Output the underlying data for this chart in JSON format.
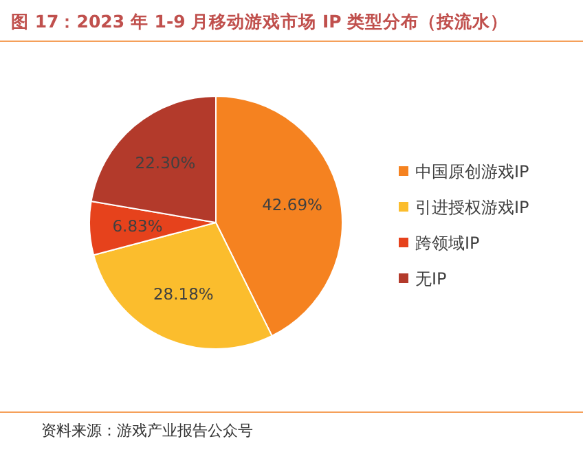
{
  "chart_data": {
    "type": "pie",
    "title": "图 17：2023 年 1-9 月移动游戏市场 IP 类型分布（按流水）",
    "categories": [
      "中国原创游戏IP",
      "引进授权游戏IP",
      "跨领域IP",
      "无IP"
    ],
    "values": [
      42.69,
      28.18,
      6.83,
      22.3
    ],
    "colors": [
      "#f58220",
      "#fbbd2d",
      "#e6421c",
      "#b33a2b"
    ],
    "value_labels": [
      "42.69%",
      "28.18%",
      "6.83%",
      "22.30%"
    ],
    "legend": "right",
    "annotations": [
      "资料来源：游戏产业报告公众号"
    ]
  }
}
